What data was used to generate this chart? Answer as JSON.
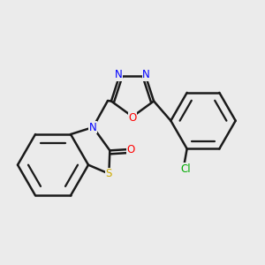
{
  "background_color": "#ebebeb",
  "bond_color": "#1a1a1a",
  "bond_width": 1.8,
  "atom_colors": {
    "N": "#0000ff",
    "O": "#ff0000",
    "S": "#ccaa00",
    "Cl": "#00aa00"
  },
  "font_size": 8.5
}
